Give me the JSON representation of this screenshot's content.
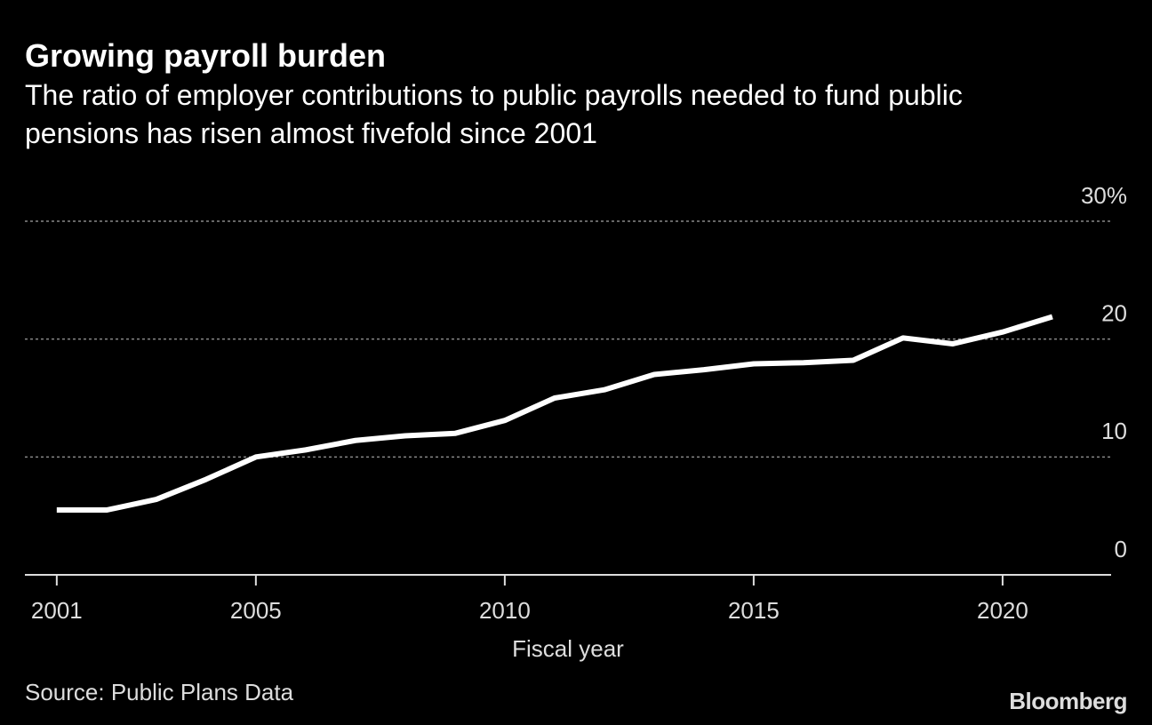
{
  "chart_data": {
    "type": "line",
    "title": "Growing payroll burden",
    "subtitle": "The ratio of employer contributions to public payrolls needed to fund public pensions has risen almost fivefold since 2001",
    "x_label": "Fiscal year",
    "source": "Source: Public Plans Data",
    "brand": "Bloomberg",
    "x": [
      2001,
      2002,
      2003,
      2004,
      2005,
      2006,
      2007,
      2008,
      2009,
      2010,
      2011,
      2012,
      2013,
      2014,
      2015,
      2016,
      2017,
      2018,
      2019,
      2020,
      2021
    ],
    "series": [
      {
        "color": "#ffffff",
        "values": [
          5.5,
          5.5,
          6.4,
          8.1,
          10.0,
          10.6,
          11.4,
          11.8,
          12.0,
          13.1,
          15.0,
          15.7,
          17.0,
          17.4,
          17.9,
          18.0,
          18.2,
          20.1,
          19.6,
          20.6,
          21.9
        ]
      }
    ],
    "xlim": [
      2000.36,
      2022.18
    ],
    "xticks": [
      2001,
      2005,
      2010,
      2015,
      2020
    ],
    "ylim": [
      0,
      30
    ],
    "yticks": [
      0,
      10,
      20,
      {
        "value": 30,
        "label": "30%"
      }
    ],
    "grid": true
  }
}
